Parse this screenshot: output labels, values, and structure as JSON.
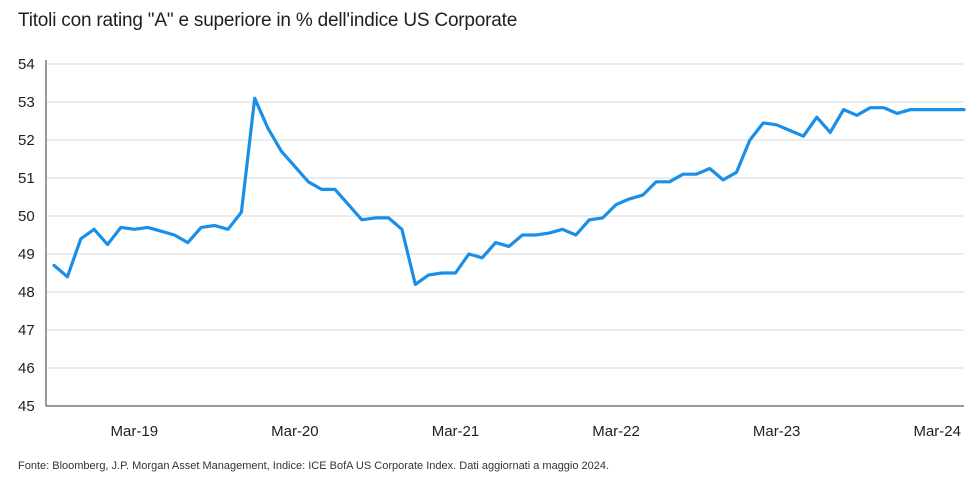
{
  "title": "Titoli con rating \"A\" e superiore in % dell'indice US Corporate",
  "source": "Fonte: Bloomberg, J.P. Morgan Asset Management, Indice: ICE BofA US Corporate Index. Dati aggiornati a maggio 2024.",
  "colors": {
    "line": "#1b8fe8",
    "grid": "#d9d9d9",
    "axis": "#333333"
  },
  "chart_data": {
    "type": "line",
    "title": "Titoli con rating \"A\" e superiore in % dell'indice US Corporate",
    "xlabel": "",
    "ylabel": "",
    "ylim": [
      45,
      54
    ],
    "yticks": [
      45,
      46,
      47,
      48,
      49,
      50,
      51,
      52,
      53,
      54
    ],
    "grid": true,
    "x_tick_labels": [
      "Mar-19",
      "Mar-20",
      "Mar-21",
      "Mar-22",
      "Mar-23",
      "Mar-24"
    ],
    "x_tick_months": [
      "2019-03",
      "2020-03",
      "2021-03",
      "2022-03",
      "2023-03",
      "2024-03"
    ],
    "x_range": [
      "2018-09",
      "2024-05"
    ],
    "series": [
      {
        "x": [
          "2018-09",
          "2018-10",
          "2018-11",
          "2018-12",
          "2019-01",
          "2019-02",
          "2019-03",
          "2019-04",
          "2019-05",
          "2019-06",
          "2019-07",
          "2019-08",
          "2019-09",
          "2019-10",
          "2019-11",
          "2019-12",
          "2020-01",
          "2020-02",
          "2020-03",
          "2020-04",
          "2020-05",
          "2020-06",
          "2020-07",
          "2020-08",
          "2020-09",
          "2020-10",
          "2020-11",
          "2020-12",
          "2021-01",
          "2021-02",
          "2021-03",
          "2021-04",
          "2021-05",
          "2021-06",
          "2021-07",
          "2021-08",
          "2021-09",
          "2021-10",
          "2021-11",
          "2021-12",
          "2022-01",
          "2022-02",
          "2022-03",
          "2022-04",
          "2022-05",
          "2022-06",
          "2022-07",
          "2022-08",
          "2022-09",
          "2022-10",
          "2022-11",
          "2022-12",
          "2023-01",
          "2023-02",
          "2023-03",
          "2023-04",
          "2023-05",
          "2023-06",
          "2023-07",
          "2023-08",
          "2023-09",
          "2023-10",
          "2023-11",
          "2023-12",
          "2024-01",
          "2024-02",
          "2024-03",
          "2024-04",
          "2024-05"
        ],
        "y": [
          48.7,
          48.4,
          49.4,
          49.65,
          49.25,
          49.7,
          49.65,
          49.7,
          49.6,
          49.5,
          49.3,
          49.7,
          49.75,
          49.65,
          50.1,
          53.1,
          52.3,
          51.7,
          51.3,
          50.9,
          50.7,
          50.7,
          50.3,
          49.9,
          49.95,
          49.95,
          49.65,
          48.2,
          48.45,
          48.5,
          48.5,
          49.0,
          48.9,
          49.3,
          49.2,
          49.5,
          49.5,
          49.55,
          49.65,
          49.5,
          49.9,
          49.95,
          50.3,
          50.45,
          50.55,
          50.9,
          50.9,
          51.1,
          51.1,
          51.25,
          50.95,
          51.15,
          52.0,
          52.45,
          52.4,
          52.25,
          52.1,
          52.6,
          52.2,
          52.8,
          52.65,
          52.85,
          52.85,
          52.7,
          52.8,
          52.8,
          52.8,
          52.8,
          52.8
        ]
      }
    ]
  }
}
